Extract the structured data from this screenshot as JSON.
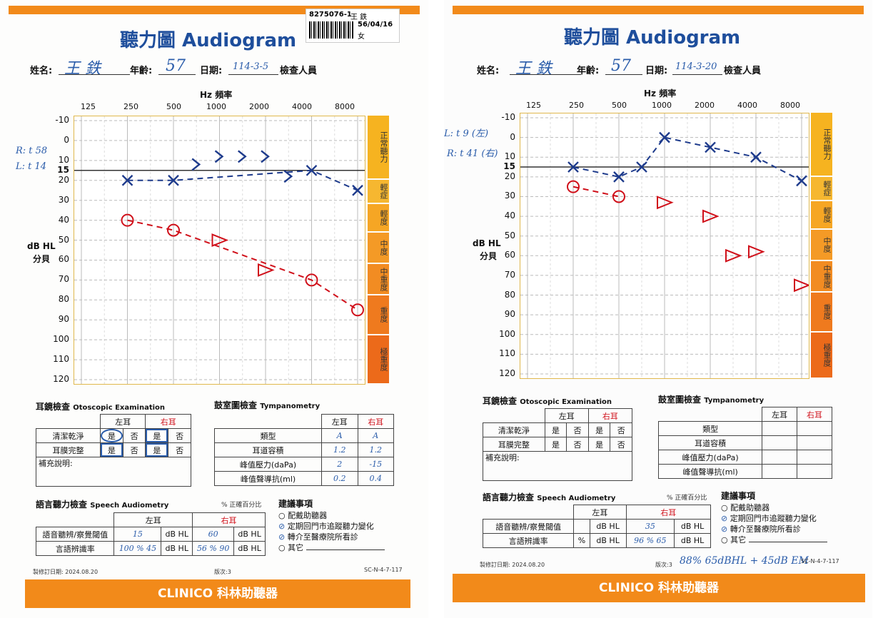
{
  "sheets": [
    {
      "title": "聽力圖 Audiogram",
      "label_tag": {
        "id": "8275076-1",
        "name_partial": "王 鉄",
        "dob": "56/04/16",
        "sex": "女"
      },
      "name_label": "姓名:",
      "name_value": "王  鉄",
      "age_label": "年齡:",
      "age_value": "57",
      "date_label": "日期:",
      "date_value": "114-3-5",
      "examiner_label": "檢查人員",
      "side_note": [
        "R: t 58",
        "L: t 14"
      ],
      "hz_label": "Hz 頻率",
      "freqs": [
        "125",
        "250",
        "500",
        "1000",
        "2000",
        "4000",
        "8000"
      ],
      "db_ticks": [
        "-10",
        "0",
        "10",
        "15",
        "20",
        "30",
        "40",
        "50",
        "60",
        "70",
        "80",
        "90",
        "100",
        "110",
        "120"
      ],
      "dbhl_label": "dB HL",
      "fenbei_label": "分貝",
      "severity": [
        "正常聽力",
        "輕症",
        "輕度",
        "中度",
        "中重度",
        "重度",
        "極重度"
      ],
      "otoscopic_title": "耳鏡檢查",
      "otoscopic_title_en": "Otoscopic Examination",
      "tymp_title": "鼓室圖檢查",
      "tymp_title_en": "Tympanometry",
      "oto_left": "左耳",
      "oto_right": "右耳",
      "oto_rows": [
        {
          "label": "清潔乾淨",
          "cells": [
            "是",
            "否",
            "是",
            "否"
          ]
        },
        {
          "label": "耳膜完整",
          "cells": [
            "是",
            "否",
            "是",
            "否"
          ]
        }
      ],
      "oto_note_label": "補充說明:",
      "tymp_rows": [
        {
          "label": "類型",
          "left": "A",
          "right": "A"
        },
        {
          "label": "耳道容積",
          "left": "1.2",
          "right": "1.2"
        },
        {
          "label": "峰值壓力(daPa)",
          "left": "2",
          "right": "-15"
        },
        {
          "label": "峰值聲導抗(ml)",
          "left": "0.2",
          "right": "0.4"
        }
      ],
      "speech_title": "語言聽力檢查",
      "speech_title_en": "Speech Audiometry",
      "speech_pct_note": "% 正確百分比",
      "speech_rows": [
        {
          "label": "語音聽辨/察覺閾值",
          "left": "15",
          "left_unit": "dB HL",
          "right": "60",
          "right_unit": "dB HL"
        },
        {
          "label": "言語辨識率",
          "left": "100 % 45",
          "left_unit": "dB HL",
          "right": "56 % 90",
          "right_unit": "dB HL"
        }
      ],
      "rec_title": "建議事項",
      "rec_items": [
        "配戴助聽器",
        "定期回門市追蹤聽力變化",
        "轉介至醫療院所看診",
        "其它"
      ],
      "rec_checked": [
        false,
        true,
        true,
        false
      ],
      "print_date": "製修訂日期: 2024.08.20",
      "version": "版次:3",
      "form_code": "SC-N-4-7-117",
      "footer": "CLINICO 科林助聽器"
    },
    {
      "title": "聽力圖 Audiogram",
      "name_label": "姓名:",
      "name_value": "王  鉄",
      "age_label": "年齡:",
      "age_value": "57",
      "date_label": "日期:",
      "date_value": "114-3-20",
      "examiner_label": "檢查人員",
      "side_note": [
        "L: t 9 (左)",
        "R: t 41 (右)"
      ],
      "hz_label": "Hz 頻率",
      "freqs": [
        "125",
        "250",
        "500",
        "1000",
        "2000",
        "4000",
        "8000"
      ],
      "db_ticks": [
        "-10",
        "0",
        "10",
        "15",
        "20",
        "30",
        "40",
        "50",
        "60",
        "70",
        "80",
        "90",
        "100",
        "110",
        "120"
      ],
      "dbhl_label": "dB HL",
      "fenbei_label": "分貝",
      "severity": [
        "正常聽力",
        "輕症",
        "輕度",
        "中度",
        "中重度",
        "重度",
        "極重度"
      ],
      "otoscopic_title": "耳鏡檢查",
      "otoscopic_title_en": "Otoscopic Examination",
      "tymp_title": "鼓室圖檢查",
      "tymp_title_en": "Tympanometry",
      "oto_left": "左耳",
      "oto_right": "右耳",
      "oto_rows": [
        {
          "label": "清潔乾淨",
          "cells": [
            "是",
            "否",
            "是",
            "否"
          ]
        },
        {
          "label": "耳膜完整",
          "cells": [
            "是",
            "否",
            "是",
            "否"
          ]
        }
      ],
      "oto_note_label": "補充說明:",
      "tymp_rows": [
        {
          "label": "類型",
          "left": "",
          "right": ""
        },
        {
          "label": "耳道容積",
          "left": "",
          "right": ""
        },
        {
          "label": "峰值壓力(daPa)",
          "left": "",
          "right": ""
        },
        {
          "label": "峰值聲導抗(ml)",
          "left": "",
          "right": ""
        }
      ],
      "speech_title": "語言聽力檢查",
      "speech_title_en": "Speech Audiometry",
      "speech_pct_note": "% 正確百分比",
      "speech_rows": [
        {
          "label": "語音聽辨/察覺閾值",
          "left": "",
          "left_unit": "dB HL",
          "right": "35",
          "right_unit": "dB HL"
        },
        {
          "label": "言語辨識率",
          "left": "%",
          "left_unit": "dB HL",
          "right": "96 % 65",
          "right_unit": "dB HL"
        }
      ],
      "rec_title": "建議事項",
      "rec_items": [
        "配戴助聽器",
        "定期回門市追蹤聽力變化",
        "轉介至醫療院所看診",
        "其它"
      ],
      "rec_checked": [
        false,
        true,
        true,
        false
      ],
      "bottom_note": "88% 65dBHL + 45dB EM",
      "print_date": "製修訂日期: 2024.08.20",
      "version": "版次:3",
      "form_code": "SC-N-4-7-117",
      "footer": "CLINICO 科林助聽器"
    }
  ],
  "colors": {
    "brand_orange": "#f28a1a",
    "title_blue": "#1e4e9c",
    "right_ear": "#d0101a",
    "left_ear": "#1e3b8c"
  },
  "chart_data": [
    {
      "type": "line",
      "x": [
        "250",
        "500",
        "1000",
        "2000",
        "4000",
        "8000"
      ],
      "ylabel": "dB HL",
      "xlabel": "Hz 頻率",
      "ylim": [
        -10,
        120
      ],
      "y_inverted": true,
      "series": [
        {
          "name": "右耳",
          "marker": "O",
          "x": [
            "250",
            "500",
            "750",
            "1000",
            "1500",
            "2000",
            "3000",
            "4000",
            "6000",
            "8000"
          ],
          "values": [
            40,
            45,
            null,
            null,
            null,
            null,
            null,
            70,
            null,
            85
          ]
        },
        {
          "name": "右耳",
          "marker": "triangle",
          "x": [
            "1000",
            "1500",
            "2000",
            "3000"
          ],
          "values": [
            null,
            null,
            null,
            null
          ]
        },
        {
          "name": "左耳",
          "marker": "X",
          "x": [
            "250",
            "500",
            "1000",
            "2000",
            "4000",
            "8000"
          ],
          "values": [
            20,
            20,
            null,
            null,
            15,
            25
          ]
        }
      ],
      "points": {
        "right_air_O": [
          [
            "250",
            40
          ],
          [
            "500",
            45
          ],
          [
            "4000",
            70
          ],
          [
            "8000",
            85
          ]
        ],
        "right_bone_triangle": [
          [
            "1000",
            50
          ],
          [
            "2000",
            65
          ]
        ],
        "left_air_X": [
          [
            "250",
            20
          ],
          [
            "500",
            20
          ],
          [
            "4000",
            15
          ],
          [
            "8000",
            25
          ]
        ],
        "left_bone_arrow": [
          [
            "750",
            12
          ],
          [
            "1000",
            8
          ],
          [
            "1500",
            8
          ],
          [
            "2000",
            8
          ],
          [
            "3000",
            18
          ]
        ]
      }
    },
    {
      "type": "line",
      "x": [
        "250",
        "500",
        "1000",
        "2000",
        "4000",
        "8000"
      ],
      "ylabel": "dB HL",
      "xlabel": "Hz 頻率",
      "ylim": [
        -10,
        120
      ],
      "y_inverted": true,
      "series": [],
      "points": {
        "right_air_O": [
          [
            "250",
            25
          ],
          [
            "500",
            30
          ]
        ],
        "right_bone_triangle": [
          [
            "1000",
            33
          ],
          [
            "2000",
            40
          ],
          [
            "3000",
            60
          ],
          [
            "4000",
            58
          ],
          [
            "8000",
            75
          ]
        ],
        "left_air_X": [
          [
            "250",
            15
          ],
          [
            "500",
            20
          ],
          [
            "750",
            15
          ],
          [
            "1000",
            0
          ],
          [
            "2000",
            5
          ],
          [
            "4000",
            10
          ],
          [
            "8000",
            22
          ]
        ]
      }
    }
  ]
}
